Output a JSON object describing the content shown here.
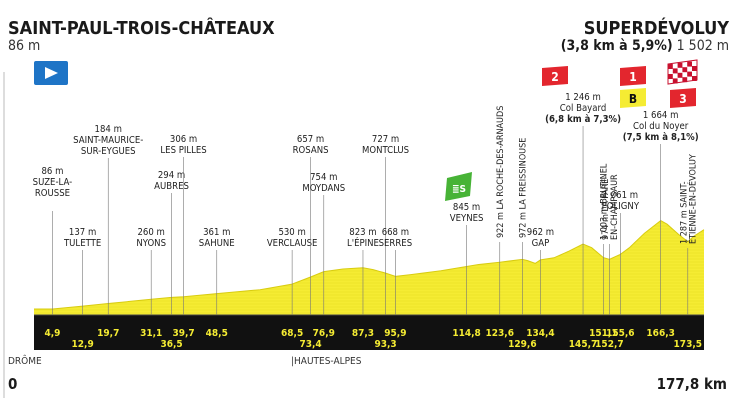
{
  "header": {
    "start_name": "SAINT-PAUL-TROIS-CHÂTEAUX",
    "start_altitude": "86 m",
    "finish_name": "SUPERDÉVOLUY",
    "finish_climb": "(3,8 km à 5,9%)",
    "finish_altitude": "1 502 m"
  },
  "axis": {
    "start_km": "0",
    "end_km": "177,8 km"
  },
  "regions": [
    "DRÔME",
    "|HAUTES-ALPES"
  ],
  "colors": {
    "profile": "#f5ec33",
    "profile_dark": "#d8cc10",
    "band": "#111111",
    "band_text": "#f5ec33",
    "kom2": "#e3262e",
    "sprint": "#47b336",
    "bonus": "#f5ec33",
    "start_flag": "#1e74c6"
  },
  "icons": {
    "start": "start-flag-icon",
    "sprint": "intermediate-sprint-icon",
    "kom": "mountain-category-icon",
    "bonus": "bonus-point-icon",
    "finish": "finish-checkered-flag-icon"
  },
  "badges": {
    "kom_cat2": "2",
    "kom_cat1": "1",
    "bonus": "B",
    "finish_cat": "3"
  },
  "chart_data": {
    "type": "area",
    "title": "",
    "xlabel": "",
    "ylabel": "",
    "waypoints": [
      {
        "km": 4.9,
        "altitude_m": 86,
        "label": "86 m\nSUZE-LA-\nROUSSE"
      },
      {
        "km": 12.9,
        "altitude_m": 137,
        "label": "137 m\nTULETTE"
      },
      {
        "km": 19.7,
        "altitude_m": 184,
        "label": "184 m\nSAINT-MAURICE-\nSUR-EYGUES"
      },
      {
        "km": 31.1,
        "altitude_m": 260,
        "label": "260 m\nNYONS"
      },
      {
        "km": 36.5,
        "altitude_m": 294,
        "label": "294 m\nAUBRES"
      },
      {
        "km": 39.7,
        "altitude_m": 306,
        "label": "306 m\nLES PILLES"
      },
      {
        "km": 48.5,
        "altitude_m": 361,
        "label": "361 m\nSAHUNE"
      },
      {
        "km": 68.5,
        "altitude_m": 530,
        "label": "530 m\nVERCLAUSE"
      },
      {
        "km": 73.4,
        "altitude_m": 657,
        "label": "657 m\nROSANS"
      },
      {
        "km": 76.9,
        "altitude_m": 754,
        "label": "754 m\nMOYDANS"
      },
      {
        "km": 87.3,
        "altitude_m": 823,
        "label": "823 m\nL'ÉPINE"
      },
      {
        "km": 93.3,
        "altitude_m": 727,
        "label": "727 m\nMONTCLUS"
      },
      {
        "km": 95.9,
        "altitude_m": 668,
        "label": "668 m\nSERRES"
      },
      {
        "km": 114.8,
        "altitude_m": 845,
        "label": "845 m\nVEYNES"
      },
      {
        "km": 123.6,
        "altitude_m": 922,
        "label": "922 m LA ROCHE-DES-ARNAUDS"
      },
      {
        "km": 129.6,
        "altitude_m": 972,
        "label": "972 m LA FREISSINOUSE"
      },
      {
        "km": 134.4,
        "altitude_m": 962,
        "label": "962 m\nGAP"
      },
      {
        "km": 145.7,
        "altitude_m": 1246,
        "label": "1 246 m\nCol Bayard\n(6,8 km à 7,3%)"
      },
      {
        "km": 151.1,
        "altitude_m": 1003,
        "label": "1 003 m BRUTINEL"
      },
      {
        "km": 152.7,
        "altitude_m": 974,
        "label": "974 m LA FARE-\nEN-CHAMPSAUR"
      },
      {
        "km": 155.6,
        "altitude_m": 1061,
        "label": "1 061 m\nPOLIGNY"
      },
      {
        "km": 166.3,
        "altitude_m": 1664,
        "label": "1 664 m\nCol du Noyer\n(7,5 km à 8,1%)"
      },
      {
        "km": 173.5,
        "altitude_m": 1287,
        "label": "1 287 m SAINT-\nÉTIENNE-EN-DÉVOLUY"
      }
    ],
    "km_labels": [
      {
        "km": 4.9,
        "text": "4,9",
        "row": 1
      },
      {
        "km": 12.9,
        "text": "12,9",
        "row": 2
      },
      {
        "km": 19.7,
        "text": "19,7",
        "row": 1
      },
      {
        "km": 31.1,
        "text": "31,1",
        "row": 1
      },
      {
        "km": 36.5,
        "text": "36,5",
        "row": 2
      },
      {
        "km": 39.7,
        "text": "39,7",
        "row": 1
      },
      {
        "km": 48.5,
        "text": "48,5",
        "row": 1
      },
      {
        "km": 68.5,
        "text": "68,5",
        "row": 1
      },
      {
        "km": 73.4,
        "text": "73,4",
        "row": 2
      },
      {
        "km": 76.9,
        "text": "76,9",
        "row": 1
      },
      {
        "km": 87.3,
        "text": "87,3",
        "row": 1
      },
      {
        "km": 93.3,
        "text": "93,3",
        "row": 2
      },
      {
        "km": 95.9,
        "text": "95,9",
        "row": 1
      },
      {
        "km": 114.8,
        "text": "114,8",
        "row": 1
      },
      {
        "km": 123.6,
        "text": "123,6",
        "row": 1
      },
      {
        "km": 129.6,
        "text": "129,6",
        "row": 2
      },
      {
        "km": 134.4,
        "text": "134,4",
        "row": 1
      },
      {
        "km": 145.7,
        "text": "145,7",
        "row": 2
      },
      {
        "km": 151.1,
        "text": "151,1",
        "row": 1
      },
      {
        "km": 152.7,
        "text": "152,7",
        "row": 2
      },
      {
        "km": 155.6,
        "text": "155,6",
        "row": 1
      },
      {
        "km": 166.3,
        "text": "166,3",
        "row": 1
      },
      {
        "km": 173.5,
        "text": "173,5",
        "row": 2
      }
    ],
    "profile": [
      [
        0,
        86
      ],
      [
        4.9,
        86
      ],
      [
        12.9,
        137
      ],
      [
        19.7,
        184
      ],
      [
        31.1,
        260
      ],
      [
        36.5,
        294
      ],
      [
        39.7,
        306
      ],
      [
        48.5,
        361
      ],
      [
        60,
        430
      ],
      [
        68.5,
        530
      ],
      [
        73.4,
        657
      ],
      [
        76.9,
        754
      ],
      [
        82,
        800
      ],
      [
        87.3,
        823
      ],
      [
        90,
        790
      ],
      [
        93.3,
        727
      ],
      [
        95.9,
        668
      ],
      [
        100,
        700
      ],
      [
        108,
        770
      ],
      [
        114.8,
        845
      ],
      [
        118,
        880
      ],
      [
        123.6,
        922
      ],
      [
        129.6,
        972
      ],
      [
        131,
        950
      ],
      [
        133,
        900
      ],
      [
        134.4,
        962
      ],
      [
        138,
        1000
      ],
      [
        142,
        1120
      ],
      [
        145.7,
        1246
      ],
      [
        148,
        1180
      ],
      [
        151.1,
        1003
      ],
      [
        152.7,
        974
      ],
      [
        155.6,
        1061
      ],
      [
        158,
        1180
      ],
      [
        162,
        1440
      ],
      [
        166.3,
        1664
      ],
      [
        168,
        1600
      ],
      [
        171,
        1420
      ],
      [
        173.5,
        1287
      ],
      [
        175,
        1380
      ],
      [
        177.8,
        1502
      ]
    ],
    "x_range": [
      0,
      177.8
    ],
    "y_range": [
      0,
      1700
    ]
  }
}
